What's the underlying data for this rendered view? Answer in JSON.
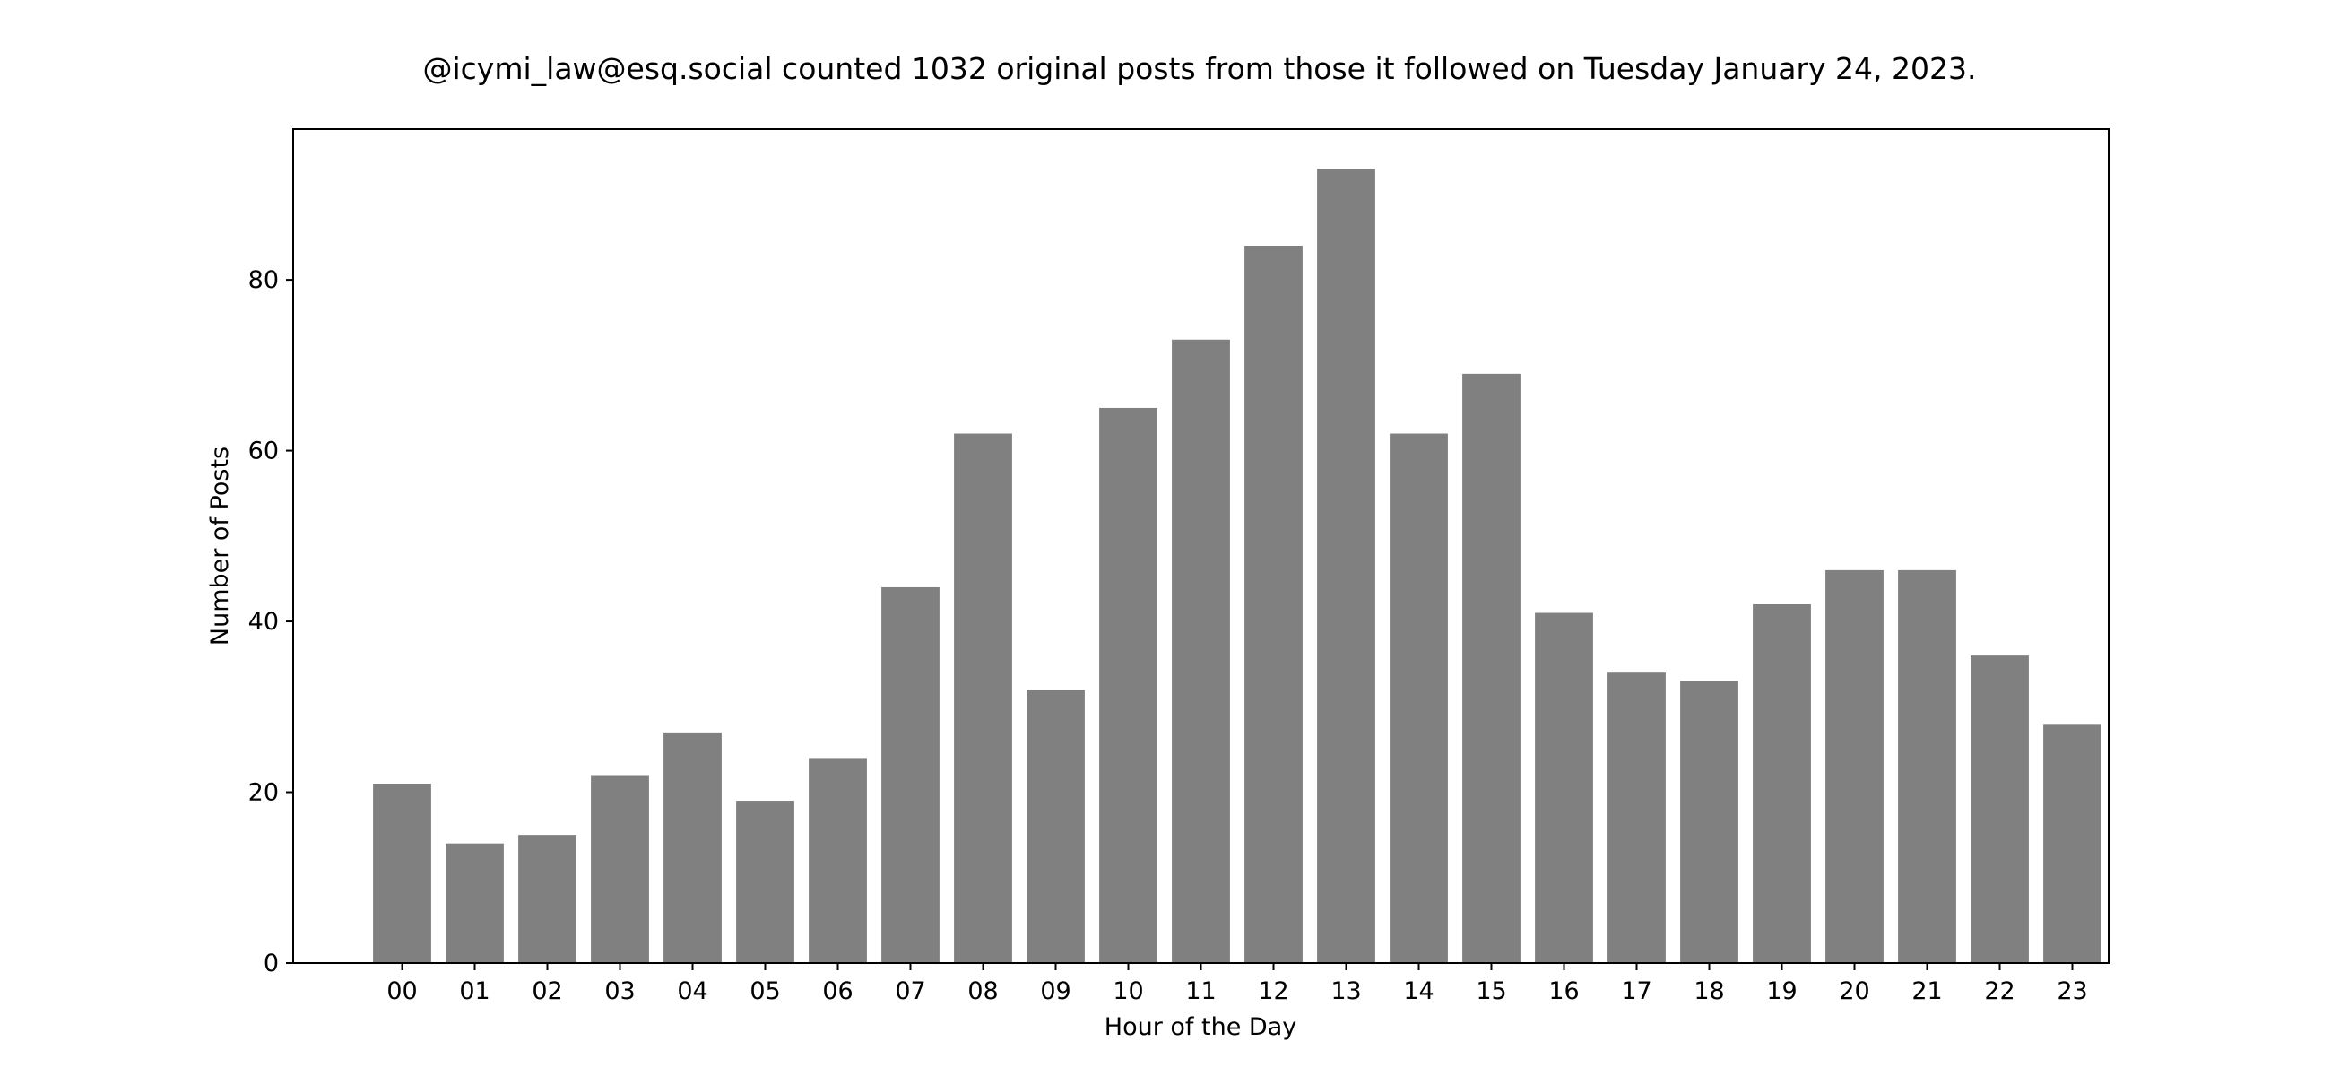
{
  "chart_data": {
    "type": "bar",
    "title": "@icymi_law@esq.social counted 1032 original posts from those it followed on Tuesday January 24, 2023.",
    "xlabel": "Hour of the Day",
    "ylabel": "Number of Posts",
    "categories": [
      "00",
      "01",
      "02",
      "03",
      "04",
      "05",
      "06",
      "07",
      "08",
      "09",
      "10",
      "11",
      "12",
      "13",
      "14",
      "15",
      "16",
      "17",
      "18",
      "19",
      "20",
      "21",
      "22",
      "23"
    ],
    "values": [
      21,
      14,
      15,
      22,
      27,
      19,
      24,
      44,
      62,
      32,
      65,
      73,
      84,
      93,
      62,
      69,
      41,
      34,
      33,
      42,
      46,
      46,
      36,
      28
    ],
    "yticks": [
      0,
      20,
      40,
      60,
      80
    ],
    "ylim": [
      0,
      97.65
    ],
    "bar_color": "#808080",
    "grid": false,
    "legend": "none"
  }
}
